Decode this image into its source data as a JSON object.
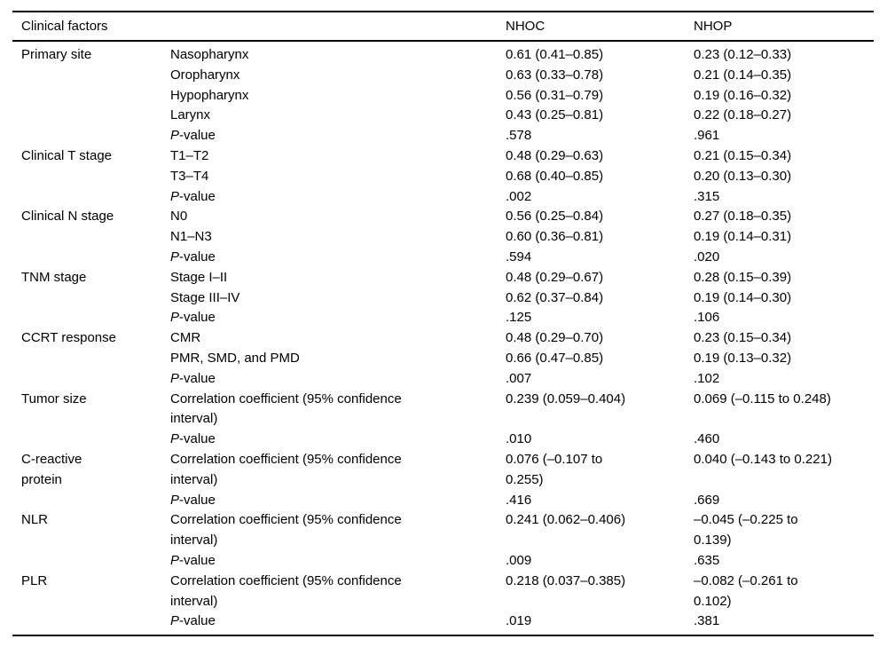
{
  "table": {
    "headers": {
      "clinical_factors": "Clinical factors",
      "nhoc": "NHOC",
      "nhop": "NHOP"
    },
    "groups": [
      {
        "factor": "Primary site",
        "rows": [
          {
            "label": "Nasopharynx",
            "nhoc": "0.61 (0.41–0.85)",
            "nhop": "0.23 (0.12–0.33)"
          },
          {
            "label": "Oropharynx",
            "nhoc": "0.63 (0.33–0.78)",
            "nhop": "0.21 (0.14–0.35)"
          },
          {
            "label": "Hypopharynx",
            "nhoc": "0.56 (0.31–0.79)",
            "nhop": "0.19 (0.16–0.32)"
          },
          {
            "label": "Larynx",
            "nhoc": "0.43 (0.25–0.81)",
            "nhop": "0.22 (0.18–0.27)"
          },
          {
            "label": "P-value",
            "nhoc": ".578",
            "nhop": ".961"
          }
        ]
      },
      {
        "factor": "Clinical T stage",
        "rows": [
          {
            "label": "T1–T2",
            "nhoc": "0.48 (0.29–0.63)",
            "nhop": "0.21 (0.15–0.34)"
          },
          {
            "label": "T3–T4",
            "nhoc": "0.68 (0.40–0.85)",
            "nhop": "0.20 (0.13–0.30)"
          },
          {
            "label": "P-value",
            "nhoc": ".002",
            "nhop": ".315"
          }
        ]
      },
      {
        "factor": "Clinical N stage",
        "rows": [
          {
            "label": "N0",
            "nhoc": "0.56 (0.25–0.84)",
            "nhop": "0.27 (0.18–0.35)"
          },
          {
            "label": "N1–N3",
            "nhoc": "0.60 (0.36–0.81)",
            "nhop": "0.19 (0.14–0.31)"
          },
          {
            "label": "P-value",
            "nhoc": ".594",
            "nhop": ".020"
          }
        ]
      },
      {
        "factor": "TNM stage",
        "rows": [
          {
            "label": "Stage I–II",
            "nhoc": "0.48 (0.29–0.67)",
            "nhop": "0.28 (0.15–0.39)"
          },
          {
            "label": "Stage III–IV",
            "nhoc": "0.62 (0.37–0.84)",
            "nhop": "0.19 (0.14–0.30)"
          },
          {
            "label": "P-value",
            "nhoc": ".125",
            "nhop": ".106"
          }
        ]
      },
      {
        "factor": "CCRT response",
        "rows": [
          {
            "label": "CMR",
            "nhoc": "0.48 (0.29–0.70)",
            "nhop": "0.23 (0.15–0.34)"
          },
          {
            "label": "PMR, SMD, and PMD",
            "nhoc": "0.66 (0.47–0.85)",
            "nhop": "0.19 (0.13–0.32)"
          },
          {
            "label": "P-value",
            "nhoc": ".007",
            "nhop": ".102"
          }
        ]
      },
      {
        "factor": "Tumor size",
        "rows": [
          {
            "label": "Correlation coefficient (95% confidence interval)",
            "nhoc": "0.239 (0.059–0.404)",
            "nhop": "0.069 (–0.115 to 0.248)"
          },
          {
            "label": "P-value",
            "nhoc": ".010",
            "nhop": ".460"
          }
        ]
      },
      {
        "factor": "C-reactive protein",
        "rows": [
          {
            "label": "Correlation coefficient (95% confidence interval)",
            "nhoc": "0.076 (–0.107 to 0.255)",
            "nhop": "0.040 (–0.143 to 0.221)"
          },
          {
            "label": "P-value",
            "nhoc": ".416",
            "nhop": ".669"
          }
        ]
      },
      {
        "factor": "NLR",
        "rows": [
          {
            "label": "Correlation coefficient (95% confidence interval)",
            "nhoc": "0.241 (0.062–0.406)",
            "nhop": "–0.045 (–0.225 to 0.139)"
          },
          {
            "label": "P-value",
            "nhoc": ".009",
            "nhop": ".635"
          }
        ]
      },
      {
        "factor": "PLR",
        "rows": [
          {
            "label": "Correlation coefficient (95% confidence interval)",
            "nhoc": "0.218 (0.037–0.385)",
            "nhop": "–0.082 (–0.261 to 0.102)"
          },
          {
            "label": "P-value",
            "nhoc": ".019",
            "nhop": ".381"
          }
        ]
      }
    ]
  }
}
